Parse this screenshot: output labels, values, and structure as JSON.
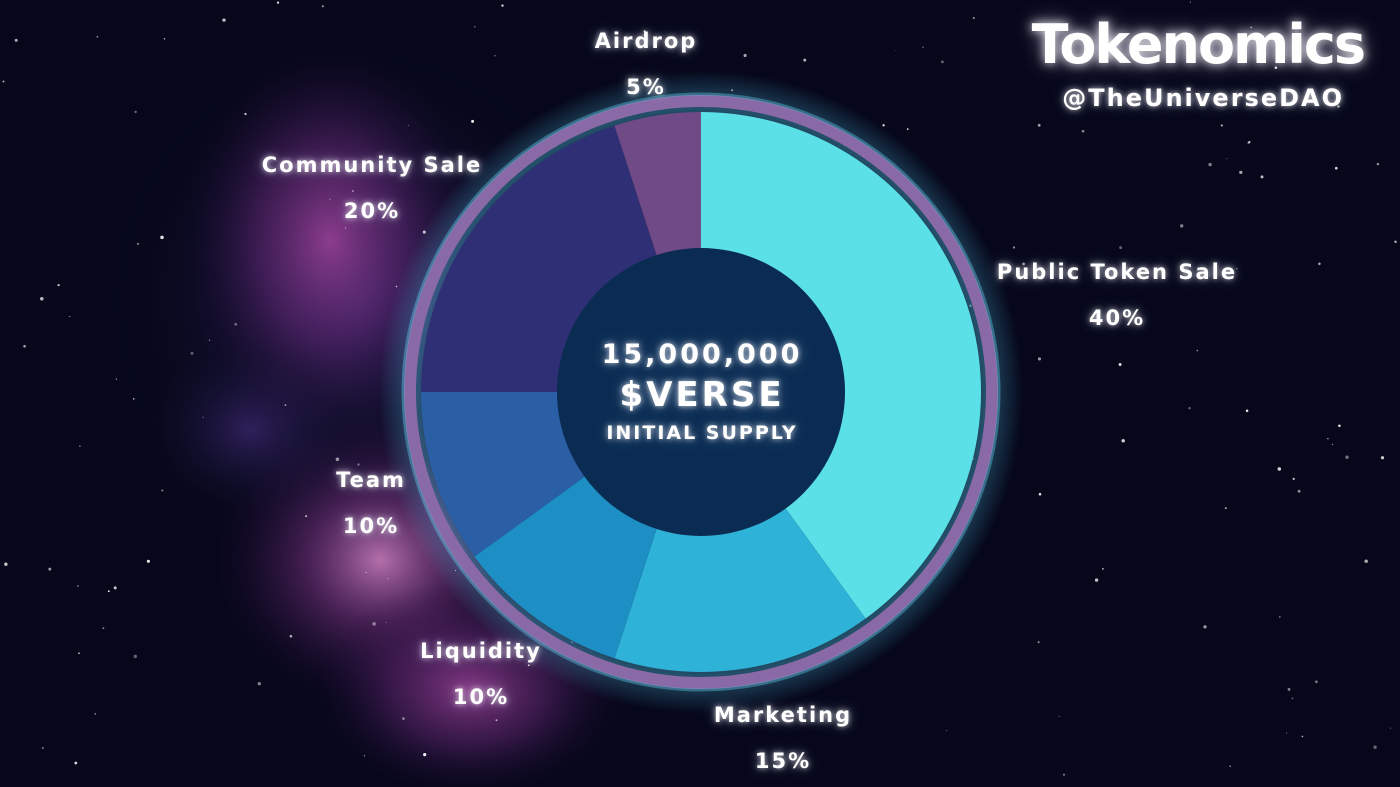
{
  "header": {
    "title": "Tokenomics",
    "handle": "@TheUniverseDAO"
  },
  "center_text": {
    "amount": "15,000,000",
    "ticker": "$VERSE",
    "caption": "INITIAL SUPPLY"
  },
  "chart_data": {
    "type": "pie",
    "donut": true,
    "title": "",
    "categories": [
      "Public Token Sale",
      "Marketing",
      "Liquidity",
      "Team",
      "Community Sale",
      "Airdrop"
    ],
    "values": [
      40,
      15,
      10,
      10,
      20,
      5
    ],
    "value_labels": [
      "40%",
      "15%",
      "10%",
      "10%",
      "20%",
      "5%"
    ],
    "colors": [
      "#5ae0e6",
      "#2fb2d8",
      "#1d8fc4",
      "#2a5ea5",
      "#2e2f74",
      "#6f4a86"
    ],
    "center_color": "#0b2c52",
    "ring_color": "#8a6aa6",
    "legend": "none (labels placed around slices)"
  }
}
